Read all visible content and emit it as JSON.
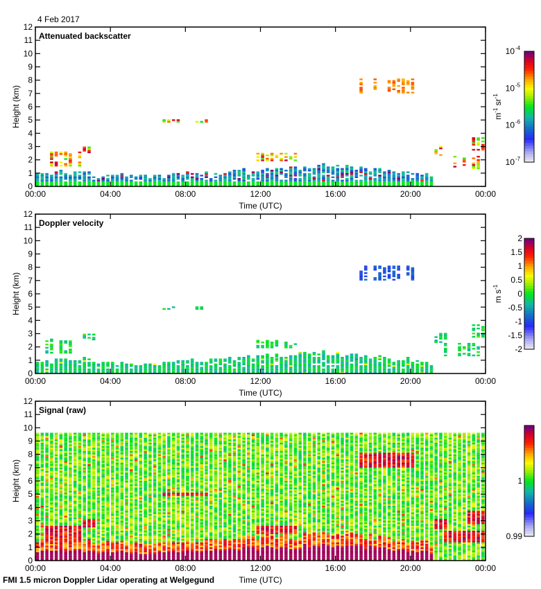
{
  "date_label": "4 Feb 2017",
  "footer": "FMI 1.5 micron Doppler Lidar operating at Welgegund",
  "chart_data": [
    {
      "type": "heatmap",
      "title": "Attenuated backscatter",
      "xlabel": "Time (UTC)",
      "ylabel": "Height (km)",
      "xticks": [
        "00:00",
        "04:00",
        "08:00",
        "12:00",
        "16:00",
        "20:00",
        "00:00"
      ],
      "yticks": [
        "0",
        "1",
        "2",
        "3",
        "4",
        "5",
        "6",
        "7",
        "8",
        "9",
        "10",
        "11",
        "12"
      ],
      "ylim": [
        0,
        12
      ],
      "xlim_hours": [
        0,
        24
      ],
      "colorbar": {
        "scale": "log",
        "range": [
          1e-07,
          0.0001
        ],
        "ticks": [
          {
            "base": "10",
            "exp": "-4",
            "pos": 1.0
          },
          {
            "base": "10",
            "exp": "-5",
            "pos": 0.667
          },
          {
            "base": "10",
            "exp": "-6",
            "pos": 0.333
          },
          {
            "base": "10",
            "exp": "-7",
            "pos": 0.0
          }
        ],
        "unit_parts": [
          "m",
          "-1",
          " sr",
          "-1"
        ]
      },
      "mode": "backscatter",
      "boundary_layer_km": [
        0.9,
        1.0,
        1.0,
        0.8,
        0.8,
        0.7,
        0.7,
        0.8,
        0.9,
        1.0,
        1.1,
        1.2,
        1.3,
        1.3,
        1.4,
        1.5,
        1.4,
        1.3,
        1.2,
        1.0,
        0.9,
        0.6,
        0.2,
        0.1
      ],
      "clouds": [
        {
          "t": [
            0.6,
            2.5
          ],
          "h": [
            1.5,
            2.6
          ]
        },
        {
          "t": [
            2.4,
            3.3
          ],
          "h": [
            2.5,
            3.0
          ]
        },
        {
          "t": [
            11.8,
            14.0
          ],
          "h": [
            1.9,
            2.5
          ]
        },
        {
          "t": [
            17.2,
            20.3
          ],
          "h": [
            7.0,
            8.1
          ]
        },
        {
          "t": [
            21.3,
            22.0
          ],
          "h": [
            2.3,
            3.0
          ]
        },
        {
          "t": [
            21.8,
            24.0
          ],
          "h": [
            1.3,
            2.2
          ]
        },
        {
          "t": [
            23.0,
            24.0
          ],
          "h": [
            2.7,
            3.7
          ]
        },
        {
          "t": [
            6.8,
            9.3
          ],
          "h": [
            4.8,
            5.0
          ]
        }
      ]
    },
    {
      "type": "heatmap",
      "title": "Doppler velocity",
      "xlabel": "Time (UTC)",
      "ylabel": "Height (km)",
      "xticks": [
        "00:00",
        "04:00",
        "08:00",
        "12:00",
        "16:00",
        "20:00",
        "00:00"
      ],
      "yticks": [
        "0",
        "1",
        "2",
        "3",
        "4",
        "5",
        "6",
        "7",
        "8",
        "9",
        "10",
        "11",
        "12"
      ],
      "ylim": [
        0,
        12
      ],
      "xlim_hours": [
        0,
        24
      ],
      "colorbar": {
        "scale": "linear",
        "range": [
          -2,
          2
        ],
        "ticks": [
          {
            "base": "2",
            "pos": 1.0
          },
          {
            "base": "1.5",
            "pos": 0.875
          },
          {
            "base": "1",
            "pos": 0.75
          },
          {
            "base": "0.5",
            "pos": 0.625
          },
          {
            "base": "0",
            "pos": 0.5
          },
          {
            "base": "-0.5",
            "pos": 0.375
          },
          {
            "base": "-1",
            "pos": 0.25
          },
          {
            "base": "-1.5",
            "pos": 0.125
          },
          {
            "base": "-2",
            "pos": 0.0
          }
        ],
        "unit_parts": [
          "m s",
          "-1"
        ]
      },
      "mode": "velocity"
    },
    {
      "type": "heatmap",
      "title": "Signal (raw)",
      "xlabel": "Time (UTC)",
      "ylabel": "Height (km)",
      "xticks": [
        "00:00",
        "04:00",
        "08:00",
        "12:00",
        "16:00",
        "20:00",
        "00:00"
      ],
      "yticks": [
        "0",
        "1",
        "2",
        "3",
        "4",
        "5",
        "6",
        "7",
        "8",
        "9",
        "10",
        "11",
        "12"
      ],
      "ylim": [
        0,
        12
      ],
      "xlim_hours": [
        0,
        24
      ],
      "max_range_km": 9.6,
      "colorbar": {
        "scale": "linear",
        "range": [
          0.99,
          1.01
        ],
        "ticks": [
          {
            "base": "1",
            "pos": 0.5
          },
          {
            "base": "0.99",
            "pos": 0.0
          }
        ],
        "unit_parts": []
      },
      "mode": "signal"
    }
  ]
}
